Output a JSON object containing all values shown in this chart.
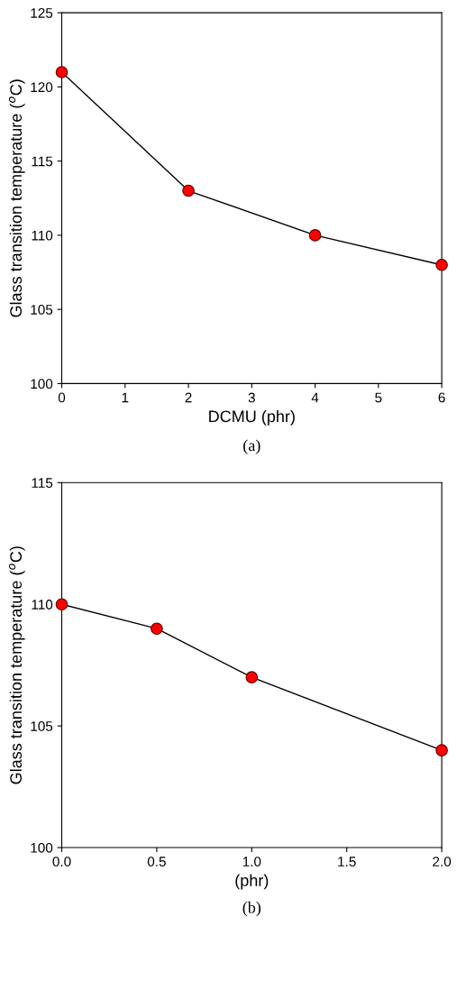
{
  "chart_data": [
    {
      "type": "line",
      "x": [
        0,
        2,
        4,
        6
      ],
      "xlabel": "DCMU (phr)",
      "ylabel": "Glass transition temperature ($^{o}$C)",
      "annotations": [
        "(a)"
      ],
      "series": [
        {
          "color": "#ff0000",
          "values": [
            121,
            113,
            110,
            108
          ]
        }
      ],
      "xlim": [
        0,
        6
      ],
      "xticks": [
        0,
        1,
        2,
        3,
        4,
        5,
        6
      ],
      "ylim": [
        100,
        125
      ],
      "yticks": [
        100,
        105,
        110,
        115,
        120,
        125
      ],
      "marker": "circle",
      "line_style": "solid",
      "grid": false,
      "legend": false
    },
    {
      "type": "line",
      "x": [
        0,
        0.5,
        1,
        2
      ],
      "xlabel": "(phr)",
      "ylabel": "Glass transition temperature ($^{o}$C)",
      "annotations": [
        "(b)"
      ],
      "series": [
        {
          "color": "#ff0000",
          "values": [
            110,
            109,
            107,
            104
          ]
        }
      ],
      "xlim": [
        0,
        2
      ],
      "xticks": [
        {
          "value": 0,
          "label": "0.0"
        },
        {
          "value": 0.5,
          "label": "0.5"
        },
        {
          "value": 1,
          "label": "1.0"
        },
        {
          "value": 1.5,
          "label": "1.5"
        },
        {
          "value": 2,
          "label": "2.0"
        }
      ],
      "ylim": [
        100,
        115
      ],
      "yticks": [
        100,
        105,
        110,
        115
      ],
      "marker": "circle",
      "line_style": "solid",
      "grid": false,
      "legend": false
    }
  ]
}
